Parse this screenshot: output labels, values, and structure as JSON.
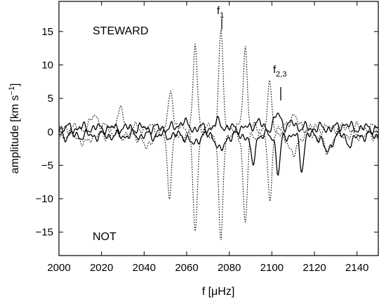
{
  "chart_data": {
    "type": "line",
    "xlabel": "f [μHz]",
    "ylabel_main": "amplitude [km s",
    "ylabel_sup": "−1",
    "ylabel_close": "]",
    "xlim": [
      2000,
      2150
    ],
    "ylim": [
      -18.5,
      19.5
    ],
    "x_ticks": [
      2000,
      2020,
      2040,
      2060,
      2080,
      2100,
      2120,
      2140
    ],
    "y_ticks": [
      -15,
      -10,
      -5,
      0,
      5,
      10,
      15
    ],
    "grid": false,
    "annotations": {
      "steward": "STEWARD",
      "not": "NOT",
      "f1_base": "f",
      "f1_sub": "1",
      "f1_x": 2076,
      "f23_base": "f",
      "f23_sub": "2,3",
      "f23_x": 2103
    },
    "series": [
      {
        "style": "dotted",
        "sign": 1,
        "peaks": [
          [
            2017,
            2.6
          ],
          [
            2029,
            3.0
          ],
          [
            2052.5,
            6.8
          ],
          [
            2064,
            12.8
          ],
          [
            2076,
            15.5
          ],
          [
            2087.5,
            12.8
          ],
          [
            2099,
            6.9
          ],
          [
            2110,
            2.6
          ]
        ]
      },
      {
        "style": "dotted",
        "sign": -1,
        "peaks": [
          [
            2012,
            -2.0
          ],
          [
            2041,
            -2.5
          ],
          [
            2052,
            -9.5
          ],
          [
            2064,
            -15.0
          ],
          [
            2076,
            -16.8
          ],
          [
            2087.5,
            -13.9
          ],
          [
            2099,
            -9.8
          ],
          [
            2110,
            -3.8
          ],
          [
            2126,
            -3.0
          ]
        ]
      },
      {
        "style": "solid",
        "sign": 1,
        "peaks": [
          [
            2058,
            1.6
          ],
          [
            2075,
            1.4
          ],
          [
            2093,
            1.5
          ],
          [
            2103,
            2.6
          ],
          [
            2110,
            1.3
          ],
          [
            2134,
            1.2
          ]
        ]
      },
      {
        "style": "solid",
        "sign": -1,
        "peaks": [
          [
            2063,
            -2.0
          ],
          [
            2076,
            -3.0
          ],
          [
            2091,
            -5.3
          ],
          [
            2103,
            -6.3
          ],
          [
            2114,
            -5.5
          ],
          [
            2126,
            -3.2
          ],
          [
            2137,
            -1.8
          ]
        ]
      }
    ]
  }
}
